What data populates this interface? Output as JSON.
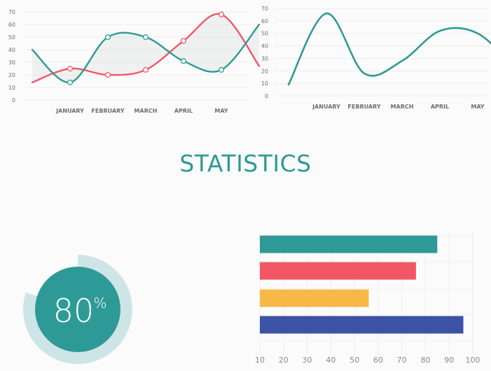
{
  "page": {
    "title": "STATISTICS"
  },
  "colors": {
    "teal": "#2e9a97",
    "red": "#f25766",
    "yellow": "#f7b946",
    "blue": "#3c52a6",
    "track": "#cde5e6",
    "title": "#2e9a97"
  },
  "chart_data": [
    {
      "type": "line",
      "categories": [
        "",
        "JANUARY",
        "FEBRUARY",
        "MARCH",
        "APRIL",
        "MAY",
        ""
      ],
      "series": [
        {
          "color": "#2e9a97",
          "values": [
            40,
            14,
            50,
            50,
            31,
            24,
            60
          ]
        },
        {
          "color": "#f25766",
          "values": [
            14,
            25,
            20,
            24,
            47,
            68,
            27
          ]
        }
      ],
      "ylim": [
        0,
        70
      ],
      "yticks": [
        0,
        10,
        20,
        30,
        40,
        50,
        60,
        70
      ],
      "markers_on": [
        1,
        2,
        3,
        4,
        5
      ],
      "shaded_between_series": true
    },
    {
      "type": "line",
      "categories": [
        "",
        "JANUARY",
        "FEBRUARY",
        "MARCH",
        "APRIL",
        "MAY",
        ""
      ],
      "series": [
        {
          "color": "#2e9a97",
          "values": [
            9,
            66,
            18,
            28,
            52,
            50,
            22
          ]
        }
      ],
      "ylim": [
        0,
        70
      ],
      "yticks": [
        0,
        10,
        20,
        30,
        40,
        50,
        60,
        70
      ]
    },
    {
      "type": "pie",
      "value": 80,
      "value_label": "80",
      "unit": "%"
    },
    {
      "type": "bar",
      "orientation": "horizontal",
      "values": [
        85,
        76,
        56,
        96
      ],
      "colors": [
        "#2e9a97",
        "#f25766",
        "#f7b946",
        "#3c52a6"
      ],
      "xlim": [
        10,
        100
      ],
      "xticks": [
        10,
        20,
        30,
        40,
        50,
        60,
        70,
        80,
        90,
        100
      ]
    }
  ]
}
